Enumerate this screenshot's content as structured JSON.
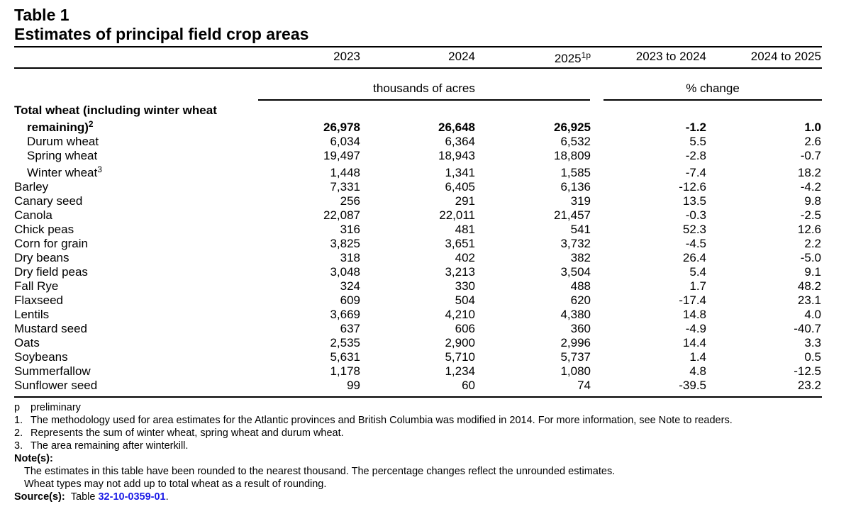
{
  "table": {
    "title_line1": "Table 1",
    "title_line2": "Estimates of principal field crop areas",
    "columns": [
      "2023",
      "2024",
      "2025",
      "2023 to 2024",
      "2024 to 2025"
    ],
    "col3_sup": "1p",
    "unit_left": "thousands of acres",
    "unit_right": "% change",
    "total_label_line1": "Total wheat (including winter wheat",
    "total_label_line2": "remaining)",
    "total_sup": "2",
    "total_values": [
      "26,978",
      "26,648",
      "26,925",
      "-1.2",
      "1.0"
    ],
    "rows": [
      {
        "label": "Durum wheat",
        "values": [
          "6,034",
          "6,364",
          "6,532",
          "5.5",
          "2.6"
        ]
      },
      {
        "label": "Spring wheat",
        "values": [
          "19,497",
          "18,943",
          "18,809",
          "-2.8",
          "-0.7"
        ]
      },
      {
        "label": "Winter wheat",
        "sup": "3",
        "values": [
          "1,448",
          "1,341",
          "1,585",
          "-7.4",
          "18.2"
        ]
      },
      {
        "label": "Barley",
        "values": [
          "7,331",
          "6,405",
          "6,136",
          "-12.6",
          "-4.2"
        ]
      },
      {
        "label": "Canary seed",
        "values": [
          "256",
          "291",
          "319",
          "13.5",
          "9.8"
        ]
      },
      {
        "label": "Canola",
        "values": [
          "22,087",
          "22,011",
          "21,457",
          "-0.3",
          "-2.5"
        ]
      },
      {
        "label": "Chick peas",
        "values": [
          "316",
          "481",
          "541",
          "52.3",
          "12.6"
        ]
      },
      {
        "label": "Corn for grain",
        "values": [
          "3,825",
          "3,651",
          "3,732",
          "-4.5",
          "2.2"
        ]
      },
      {
        "label": "Dry beans",
        "values": [
          "318",
          "402",
          "382",
          "26.4",
          "-5.0"
        ]
      },
      {
        "label": "Dry field peas",
        "values": [
          "3,048",
          "3,213",
          "3,504",
          "5.4",
          "9.1"
        ]
      },
      {
        "label": "Fall Rye",
        "values": [
          "324",
          "330",
          "488",
          "1.7",
          "48.2"
        ]
      },
      {
        "label": "Flaxseed",
        "values": [
          "609",
          "504",
          "620",
          "-17.4",
          "23.1"
        ]
      },
      {
        "label": "Lentils",
        "values": [
          "3,669",
          "4,210",
          "4,380",
          "14.8",
          "4.0"
        ]
      },
      {
        "label": "Mustard seed",
        "values": [
          "637",
          "606",
          "360",
          "-4.9",
          "-40.7"
        ]
      },
      {
        "label": "Oats",
        "values": [
          "2,535",
          "2,900",
          "2,996",
          "14.4",
          "3.3"
        ]
      },
      {
        "label": "Soybeans",
        "values": [
          "5,631",
          "5,710",
          "5,737",
          "1.4",
          "0.5"
        ]
      },
      {
        "label": "Summerfallow",
        "values": [
          "1,178",
          "1,234",
          "1,080",
          "4.8",
          "-12.5"
        ]
      },
      {
        "label": "Sunflower seed",
        "values": [
          "99",
          "60",
          "74",
          "-39.5",
          "23.2"
        ]
      }
    ]
  },
  "footnotes": {
    "p_marker": "p",
    "p_text": "preliminary",
    "n1_marker": "1.",
    "n1_text": "The methodology used for area estimates for the Atlantic provinces and British Columbia was modified in 2014. For more information, see Note to readers.",
    "n2_marker": "2.",
    "n2_text": "Represents the sum of winter wheat, spring wheat and durum wheat.",
    "n3_marker": "3.",
    "n3_text": "The area remaining after winterkill.",
    "notes_label": "Note(s):",
    "note1": "The estimates in this table have been rounded to the nearest thousand. The percentage changes reflect the unrounded estimates.",
    "note2": "Wheat types may not add up to total wheat as a result of rounding.",
    "source_label": "Source(s):",
    "source_prefix": "Table",
    "source_link": "32-10-0359-01",
    "source_suffix": "."
  }
}
